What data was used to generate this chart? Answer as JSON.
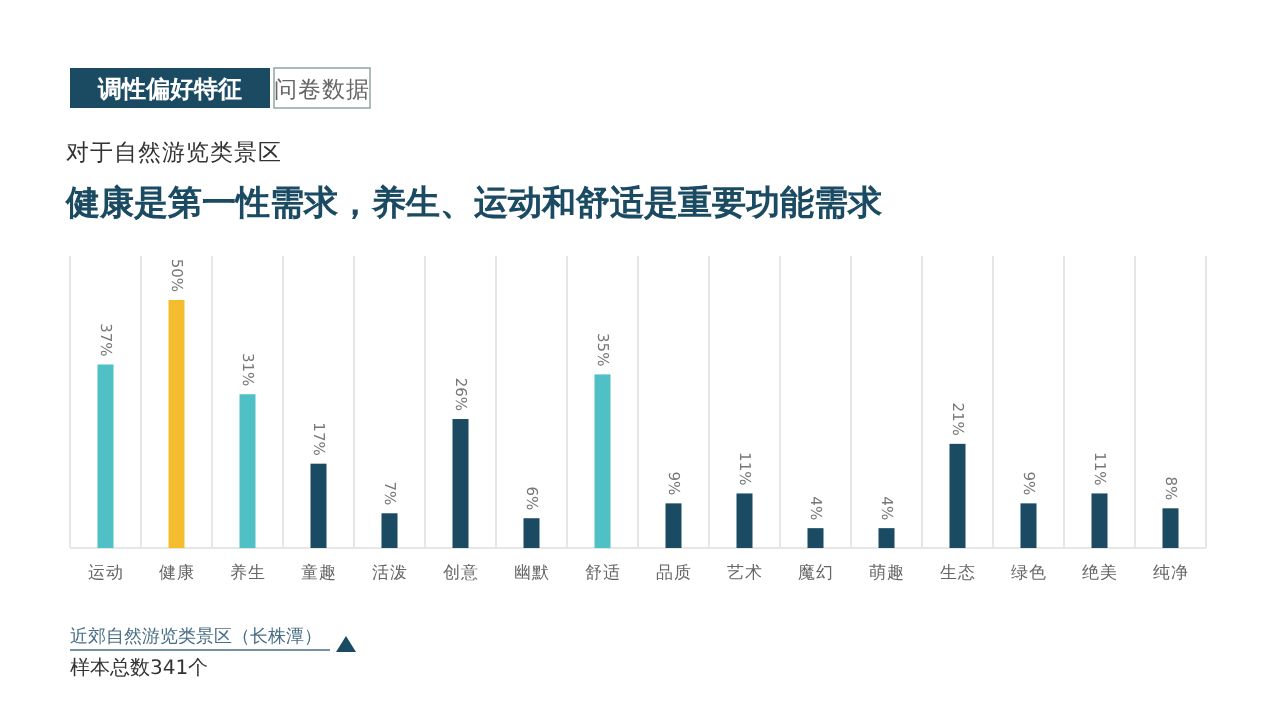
{
  "chart_data": {
    "type": "bar",
    "title": "健康是第一性需求，养生、运动和舒适是重要功能需求",
    "subtitle": "对于自然游览类景区",
    "categories": [
      "运动",
      "健康",
      "养生",
      "童趣",
      "活泼",
      "创意",
      "幽默",
      "舒适",
      "品质",
      "艺术",
      "魔幻",
      "萌趣",
      "生态",
      "绿色",
      "绝美",
      "纯净"
    ],
    "values": [
      37,
      50,
      31,
      17,
      7,
      26,
      6,
      35,
      9,
      11,
      4,
      4,
      21,
      9,
      11,
      8
    ],
    "value_labels": [
      "37%",
      "50%",
      "31%",
      "17%",
      "7%",
      "26%",
      "6%",
      "35%",
      "9%",
      "11%",
      "4%",
      "4%",
      "21%",
      "9%",
      "11%",
      "8%"
    ],
    "colors": [
      "#4fc1c6",
      "#f5bc2f",
      "#4fc1c6",
      "#1b4a63",
      "#1b4a63",
      "#1b4a63",
      "#1b4a63",
      "#4fc1c6",
      "#1b4a63",
      "#1b4a63",
      "#1b4a63",
      "#1b4a63",
      "#1b4a63",
      "#1b4a63",
      "#1b4a63",
      "#1b4a63"
    ],
    "grid": "x",
    "annotations": [
      "调性偏好特征",
      "问卷数据",
      "近郊自然游览类景区（长株潭）",
      "样本总数341个"
    ]
  }
}
